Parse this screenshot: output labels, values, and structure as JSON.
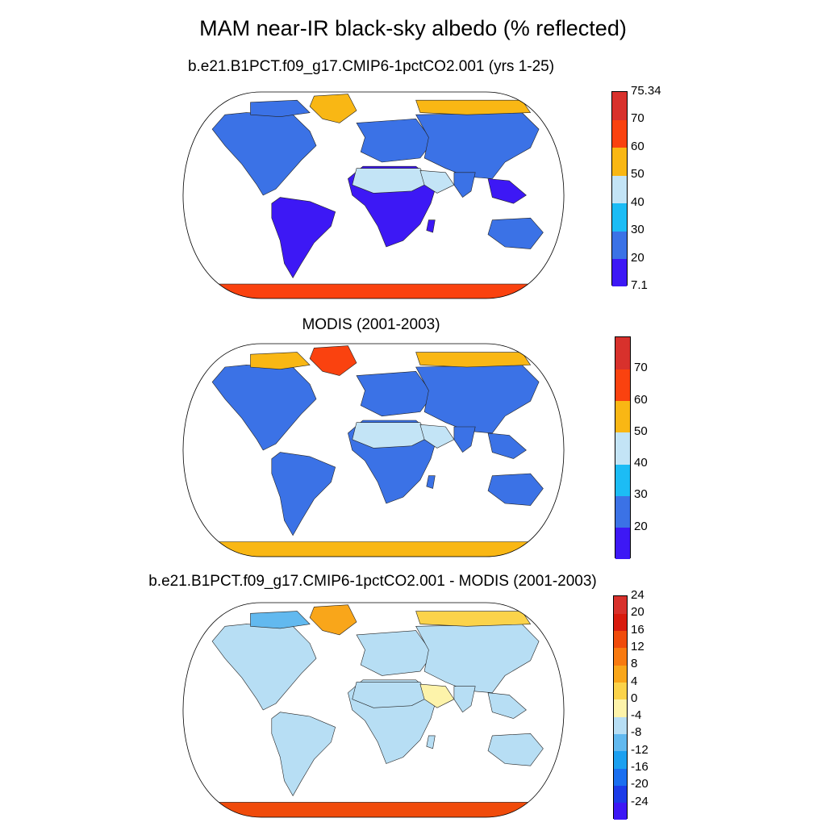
{
  "title": "MAM near-IR black-sky albedo (% reflected)",
  "panels": [
    {
      "id": "model",
      "title": "b.e21.B1PCT.f09_g17.CMIP6-1pctCO2.001 (yrs 1-25)",
      "colorbar": {
        "colors": [
          "#3d18f5",
          "#3b72e6",
          "#1cbcf5",
          "#c3e4f6",
          "#f9b714",
          "#fa420f",
          "#d8312c"
        ],
        "labels": [
          "7.1",
          "20",
          "30",
          "40",
          "50",
          "60",
          "70",
          "75.34"
        ],
        "label_mode": "edges"
      },
      "regions": {
        "greenland": "#f9b714",
        "north-america": "#3b72e6",
        "arctic-canada": "#3b72e6",
        "south-america": "#3d18f5",
        "africa": "#3d18f5",
        "sahara": "#c3e4f6",
        "arabia": "#c3e4f6",
        "europe": "#3b72e6",
        "asia": "#3b72e6",
        "siberia-north": "#f9b714",
        "india": "#3b72e6",
        "se-asia": "#3d18f5",
        "australia": "#3b72e6",
        "antarctica": "#fa420f",
        "madagascar": "#3d18f5"
      }
    },
    {
      "id": "obs",
      "title": "MODIS (2001-2003)",
      "colorbar": {
        "colors": [
          "#3d18f5",
          "#3b72e6",
          "#1cbcf5",
          "#c3e4f6",
          "#f9b714",
          "#fa420f",
          "#d8312c"
        ],
        "labels": [
          "",
          "20",
          "30",
          "40",
          "50",
          "60",
          "70",
          ""
        ],
        "label_mode": "edges"
      },
      "regions": {
        "greenland": "#fa420f",
        "north-america": "#3b72e6",
        "arctic-canada": "#f9b714",
        "south-america": "#3b72e6",
        "africa": "#3b72e6",
        "sahara": "#c3e4f6",
        "arabia": "#c3e4f6",
        "europe": "#3b72e6",
        "asia": "#3b72e6",
        "siberia-north": "#f9b714",
        "india": "#3b72e6",
        "se-asia": "#3b72e6",
        "australia": "#3b72e6",
        "antarctica": "#f9b714",
        "madagascar": "#3b72e6"
      }
    },
    {
      "id": "diff",
      "title": "b.e21.B1PCT.f09_g17.CMIP6-1pctCO2.001 - MODIS (2001-2003)",
      "colorbar": {
        "colors": [
          "#3d18f5",
          "#1c3ce8",
          "#1a6ff0",
          "#1ca0f0",
          "#62b9ef",
          "#b7def4",
          "#fdf3aa",
          "#fbd34a",
          "#f9a61a",
          "#f87a10",
          "#f04b0b",
          "#d81b0e",
          "#d8312c"
        ],
        "labels": [
          "-24",
          "-20",
          "-16",
          "-12",
          "-8",
          "-4",
          "0",
          "4",
          "8",
          "12",
          "16",
          "20",
          "24"
        ],
        "label_mode": "edges-inner"
      },
      "regions": {
        "greenland": "#f9a61a",
        "north-america": "#b7def4",
        "arctic-canada": "#62b9ef",
        "south-america": "#b7def4",
        "africa": "#b7def4",
        "sahara": "#b7def4",
        "arabia": "#fdf3aa",
        "europe": "#b7def4",
        "asia": "#b7def4",
        "siberia-north": "#fbd34a",
        "india": "#b7def4",
        "se-asia": "#b7def4",
        "australia": "#b7def4",
        "antarctica": "#f04b0b",
        "madagascar": "#b7def4"
      }
    }
  ]
}
